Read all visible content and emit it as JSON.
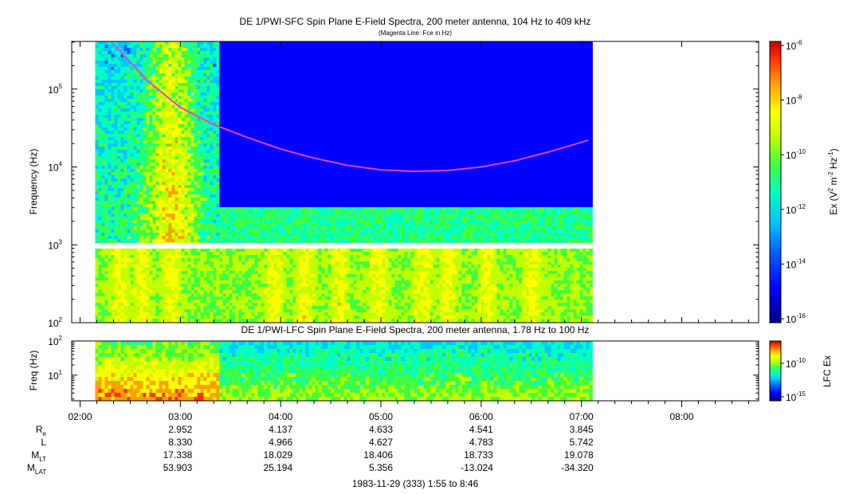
{
  "titles": {
    "sfc_title": "DE 1/PWI-SFC  Spin Plane E-Field Spectra, 200 meter antenna, 104 Hz to 409 kHz",
    "sfc_subtitle": "(Magenta Line: Fce in Hz)",
    "lfc_title": "DE 1/PWI-LFC  Spin Plane E-Field Spectra, 200 meter antenna, 1.78 Hz to 100 Hz",
    "footer": "1983-11-29 (333) 1:55 to 8:46"
  },
  "colors": {
    "fce_line": "#e040e0",
    "colormap": [
      "#00008c",
      "#0000ff",
      "#0060ff",
      "#00c8ff",
      "#00ffc0",
      "#40ff40",
      "#c0ff00",
      "#ffff00",
      "#ffa000",
      "#ff3000",
      "#c80000"
    ]
  },
  "chart_data": [
    {
      "type": "heatmap",
      "name": "sfc_panel",
      "ylabel": "Frequency (Hz)",
      "yscale": "log",
      "ylim": [
        100,
        409000
      ],
      "y_ticks": [
        {
          "value": 100,
          "base": "10",
          "exp": "2"
        },
        {
          "value": 1000,
          "base": "10",
          "exp": "3"
        },
        {
          "value": 10000,
          "base": "10",
          "exp": "4"
        },
        {
          "value": 100000,
          "base": "10",
          "exp": "5"
        }
      ],
      "xlim": [
        "01:55",
        "08:46"
      ],
      "data_coverage": [
        "02:09",
        "07:05"
      ],
      "fce_line": {
        "x": [
          "02:20",
          "02:40",
          "03:00",
          "03:20",
          "03:40",
          "04:00",
          "04:20",
          "04:40",
          "05:00",
          "05:20",
          "05:40",
          "06:00",
          "06:20",
          "06:40",
          "07:04"
        ],
        "y": [
          380000,
          130000,
          58000,
          35000,
          24000,
          17000,
          13000,
          10500,
          9200,
          8800,
          9000,
          10000,
          12000,
          15500,
          22000
        ]
      },
      "colorbar": {
        "label": "Ex (V",
        "label_parts": {
          "units_open": "Ex (V",
          "sup1": "2",
          "mid": " m",
          "sup2": "-2",
          "mid2": " Hz",
          "sup3": "-1",
          "close": ")"
        },
        "range_exp": [
          -16,
          -6
        ],
        "ticks": [
          {
            "base": "10",
            "exp": "-6"
          },
          {
            "base": "10",
            "exp": "-8"
          },
          {
            "base": "10",
            "exp": "-10"
          },
          {
            "base": "10",
            "exp": "-12"
          },
          {
            "base": "10",
            "exp": "-14"
          },
          {
            "base": "10",
            "exp": "-16"
          }
        ]
      }
    },
    {
      "type": "heatmap",
      "name": "lfc_panel",
      "ylabel": "Freq (Hz)",
      "yscale": "log",
      "ylim": [
        1.78,
        100
      ],
      "y_ticks": [
        {
          "value": 10,
          "base": "10",
          "exp": "1"
        },
        {
          "value": 100,
          "base": "10",
          "exp": "2"
        }
      ],
      "colorbar": {
        "label": "LFC Ex",
        "ticks": [
          {
            "base": "10",
            "exp": "-10"
          },
          {
            "base": "10",
            "exp": "-15"
          }
        ]
      }
    }
  ],
  "time_axis": {
    "labels": [
      "02:00",
      "03:00",
      "04:00",
      "05:00",
      "06:00",
      "07:00",
      "08:00"
    ]
  },
  "ephemeris": {
    "rows": [
      {
        "label": "R",
        "sub": "e",
        "values": [
          "2.952",
          "4.137",
          "4.633",
          "4.541",
          "3.845"
        ]
      },
      {
        "label": "L",
        "sub": "",
        "values": [
          "8.330",
          "4.966",
          "4.627",
          "4.783",
          "5.742"
        ]
      },
      {
        "label": "M",
        "sub": "LT",
        "values": [
          "17.338",
          "18.029",
          "18.406",
          "18.733",
          "19.078"
        ]
      },
      {
        "label": "M",
        "sub": "LAT",
        "values": [
          "53.903",
          "25.194",
          "5.356",
          "-13.024",
          "-34.320"
        ]
      }
    ]
  }
}
